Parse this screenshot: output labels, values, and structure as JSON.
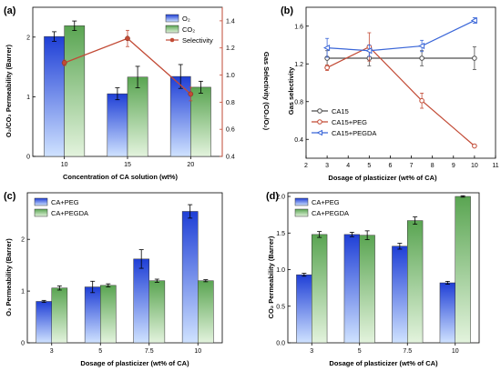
{
  "colors": {
    "blue_top": "#1f3fd6",
    "blue_bottom": "#cfe2ff",
    "green_top": "#5aa552",
    "green_bottom": "#e3f3dd",
    "red": "#c24a35",
    "gray": "#4d4d4d",
    "pegda_blue": "#3a66d8"
  },
  "chart_data": [
    {
      "panel": "(a)",
      "type": "bar",
      "categories": [
        "10",
        "15",
        "20"
      ],
      "xlabel": "Concentration of CA solution (wt%)",
      "ylabel": "O₂/CO₂ Permeability (Barrer)",
      "ylim": [
        0,
        2.5
      ],
      "y_ticks": [
        "0",
        "1",
        "2"
      ],
      "series": [
        {
          "name": "O₂",
          "values": [
            2.01,
            1.05,
            1.34
          ],
          "errors": [
            0.08,
            0.1,
            0.2
          ]
        },
        {
          "name": "CO₂",
          "values": [
            2.19,
            1.33,
            1.16
          ],
          "errors": [
            0.08,
            0.18,
            0.1
          ]
        }
      ],
      "secondary": {
        "type": "line",
        "name": "Selectivity",
        "ylabel": "Gas Selectivity (CO₂/O₂)",
        "ylim": [
          0.4,
          1.5
        ],
        "y_ticks": [
          "0.4",
          "0.6",
          "0.8",
          "1.0",
          "1.2",
          "1.4"
        ],
        "x": [
          "10",
          "15",
          "20"
        ],
        "values": [
          1.09,
          1.27,
          0.86
        ],
        "errors": [
          0.02,
          0.06,
          0.05
        ]
      },
      "legend": "top-right"
    },
    {
      "panel": "(b)",
      "type": "line",
      "xlabel": "Dosage of plasticizer (wt% of CA)",
      "ylabel": "Gas selectivity",
      "xlim": [
        2,
        11
      ],
      "ylim": [
        0.2,
        1.8
      ],
      "x_ticks": [
        "2",
        "3",
        "4",
        "5",
        "6",
        "7",
        "8",
        "9",
        "10",
        "11"
      ],
      "y_ticks": [
        "0.4",
        "0.8",
        "1.2",
        "1.6"
      ],
      "series": [
        {
          "name": "CA15",
          "x": [
            3,
            5,
            7.5,
            10
          ],
          "values": [
            1.26,
            1.26,
            1.26,
            1.26
          ],
          "errors": [
            0.08,
            0.08,
            0.08,
            0.12
          ],
          "marker": "circle"
        },
        {
          "name": "CA15+PEG",
          "x": [
            3,
            5,
            7.5,
            10
          ],
          "values": [
            1.16,
            1.38,
            0.81,
            0.33
          ],
          "errors": [
            0.03,
            0.15,
            0.08,
            0.01
          ],
          "marker": "circle"
        },
        {
          "name": "CA15+PEGDA",
          "x": [
            3,
            5,
            7.5,
            10
          ],
          "values": [
            1.37,
            1.34,
            1.39,
            1.66
          ],
          "errors": [
            0.1,
            0.06,
            0.06,
            0.03
          ],
          "marker": "triangle"
        }
      ],
      "legend": "bottom-left"
    },
    {
      "panel": "(c)",
      "type": "bar",
      "categories": [
        "3",
        "5",
        "7.5",
        "10"
      ],
      "xlabel": "Dosage of plasticizer  (wt% of CA)",
      "ylabel": "O₂ Permeability (Barrer)",
      "ylim": [
        0,
        2.9
      ],
      "y_ticks": [
        "0",
        "1",
        "2"
      ],
      "series": [
        {
          "name": "CA+PEG",
          "values": [
            0.8,
            1.08,
            1.62,
            2.54
          ],
          "errors": [
            0.02,
            0.11,
            0.18,
            0.13
          ]
        },
        {
          "name": "CA+PEGDA",
          "values": [
            1.06,
            1.11,
            1.2,
            1.2
          ],
          "errors": [
            0.04,
            0.03,
            0.03,
            0.02
          ]
        }
      ],
      "legend": "top-left"
    },
    {
      "panel": "(d)",
      "type": "bar",
      "categories": [
        "3",
        "5",
        "7.5",
        "10"
      ],
      "xlabel": "Dosage of plasticizer (wt% of CA)",
      "ylabel": "CO₂ Permeability (Barrer)",
      "ylim": [
        0,
        2.05
      ],
      "y_ticks": [
        "0.0",
        "0.5",
        "1.0",
        "1.5",
        "2.0"
      ],
      "series": [
        {
          "name": "CA+PEG",
          "values": [
            0.93,
            1.48,
            1.32,
            0.82
          ],
          "errors": [
            0.02,
            0.03,
            0.04,
            0.02
          ]
        },
        {
          "name": "CA+PEGDA",
          "values": [
            1.48,
            1.47,
            1.67,
            2.0
          ],
          "errors": [
            0.04,
            0.06,
            0.05,
            0.01
          ]
        }
      ],
      "legend": "top-left"
    }
  ]
}
